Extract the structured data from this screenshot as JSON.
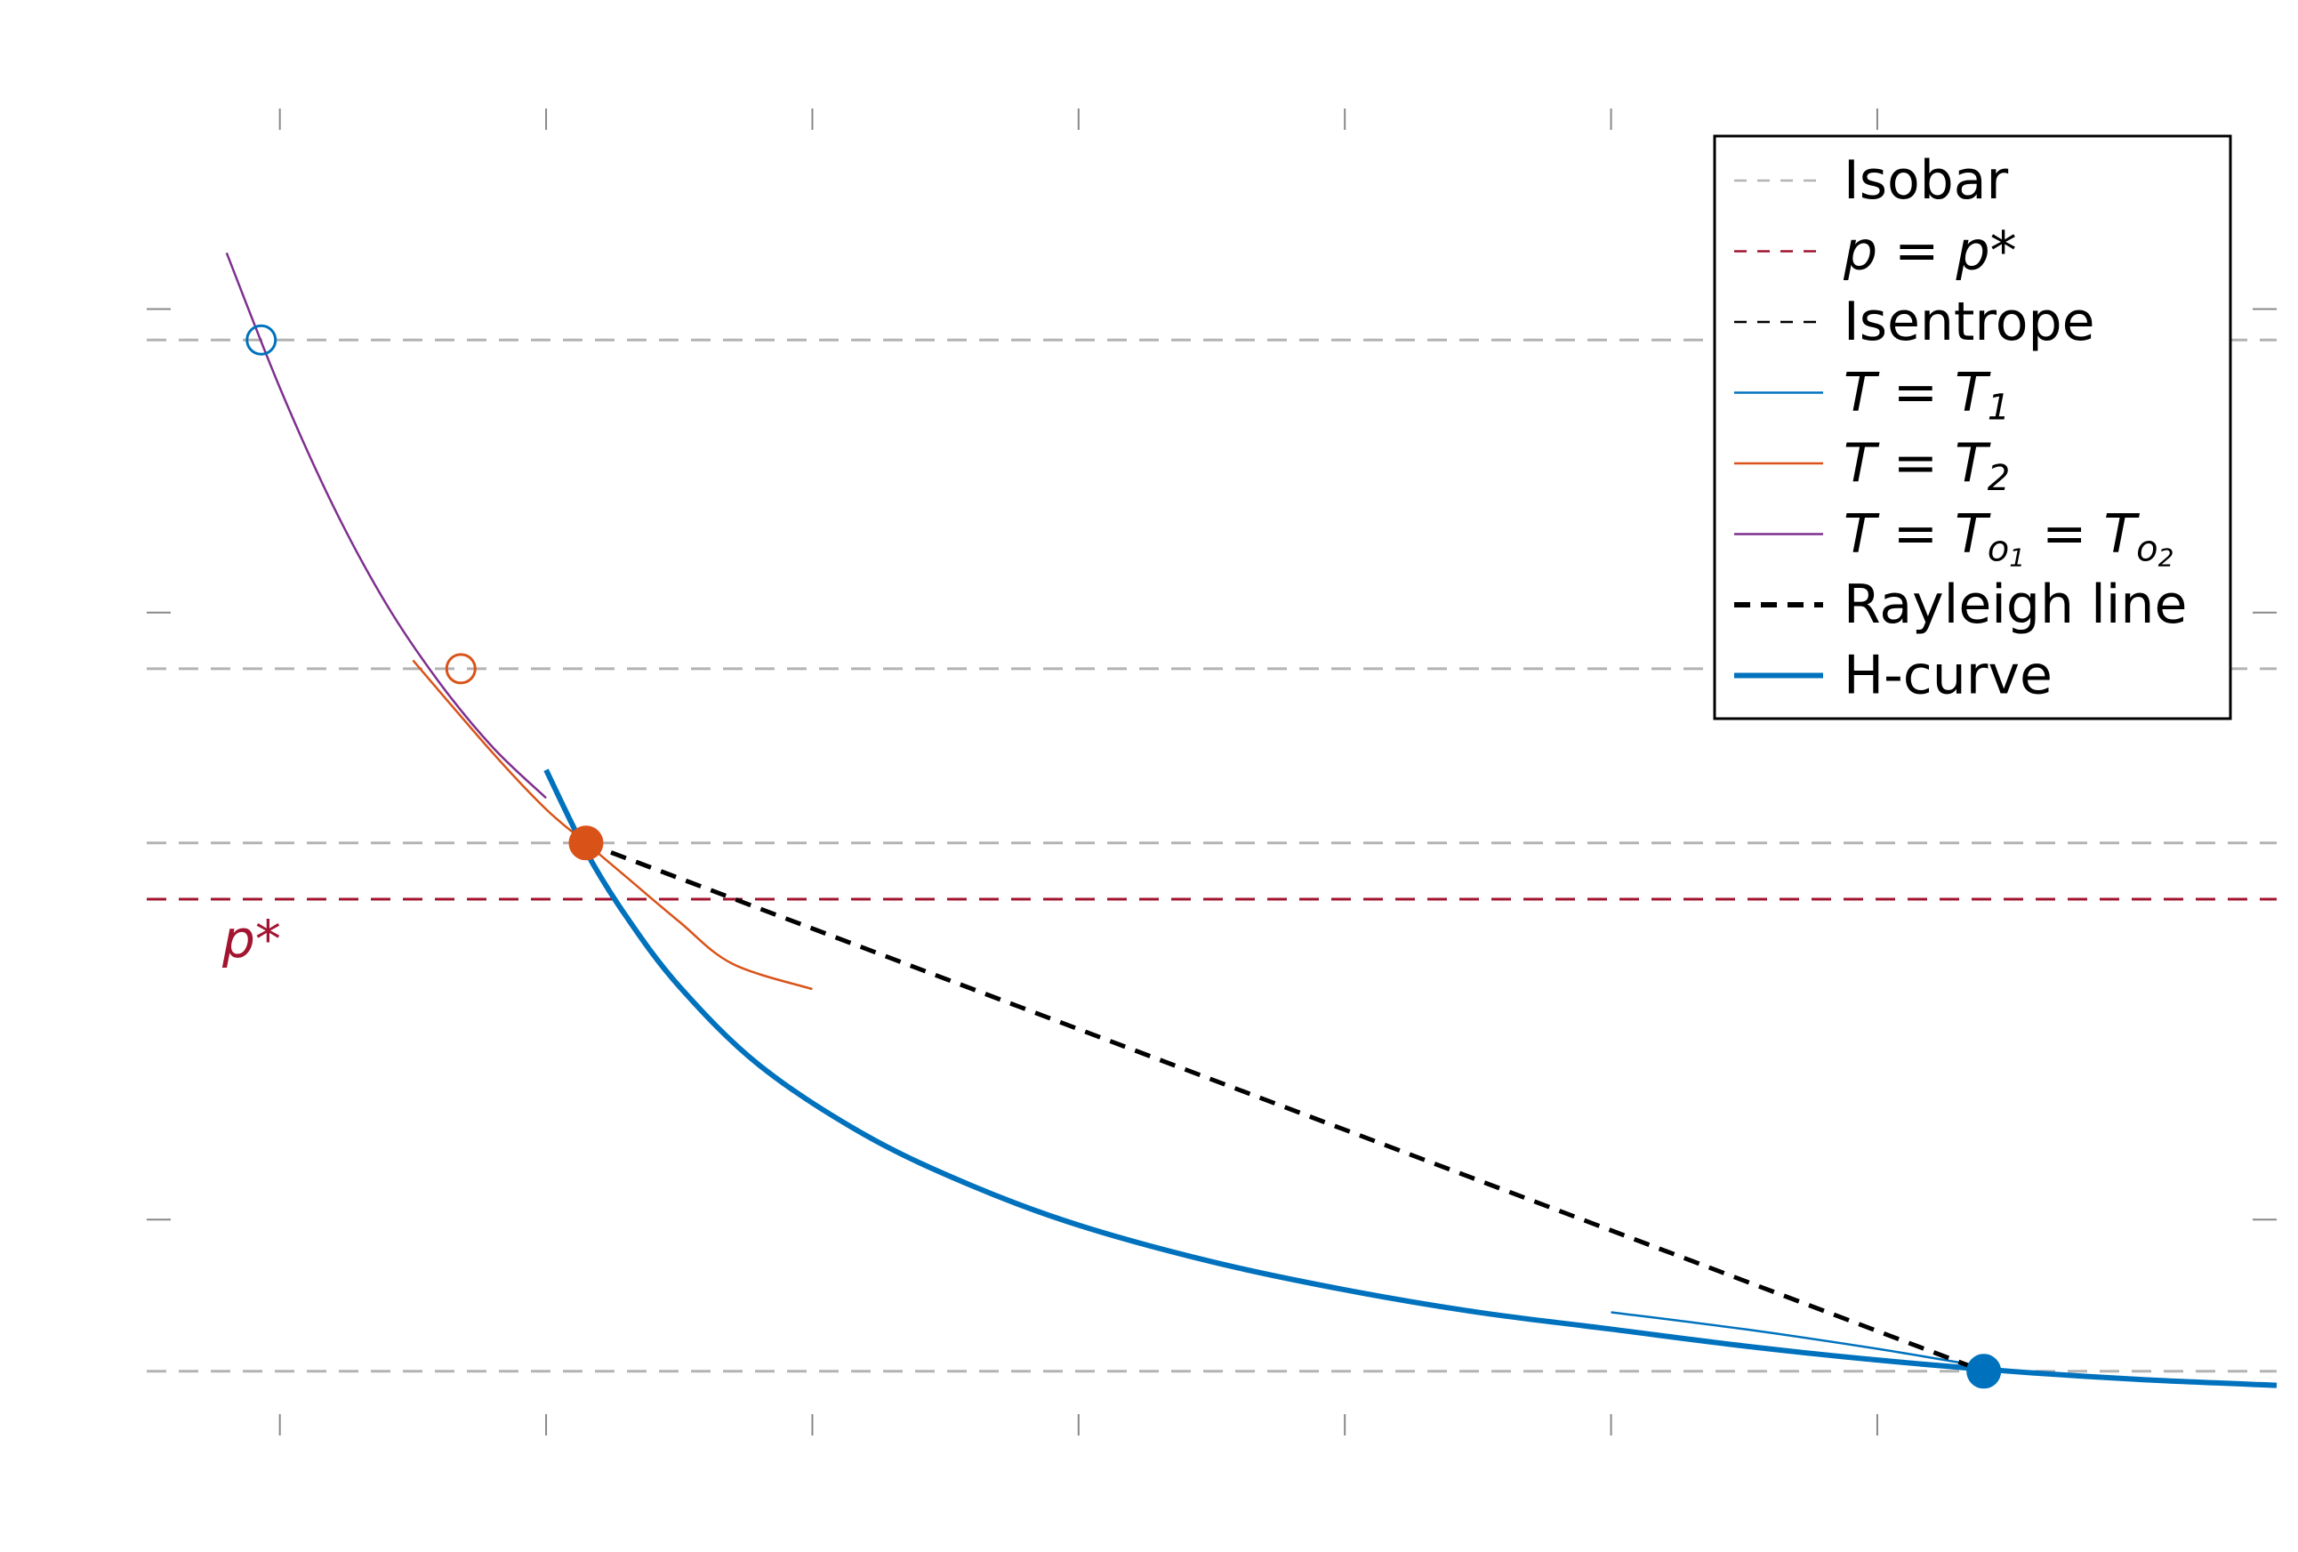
{
  "chart_data": {
    "type": "line",
    "title": "",
    "xlabel": "",
    "ylabel": "",
    "xlim": [
      -1.5,
      6.5
    ],
    "ylim": [
      -0.2,
      4.5
    ],
    "grid": false,
    "legend_position": "top-right",
    "colors": {
      "isobar": "#b3b3b3",
      "pstar": "#a2142f",
      "isentrope": "#000000",
      "t1": "#0072bd",
      "t2": "#d95319",
      "to": "#7e2f8e",
      "rayleigh": "#000000",
      "hcurve": "#0072bd"
    },
    "isobars": [
      3.67,
      2.5,
      1.88,
      0.0
    ],
    "pstar_level": 1.68,
    "pstar_label": "p*",
    "legend": [
      {
        "key": "isobar",
        "style": "dash-thin",
        "text": "Isobar"
      },
      {
        "key": "pstar",
        "style": "dash-thin",
        "text": "p = p*"
      },
      {
        "key": "isentrope",
        "style": "dash-thin",
        "text": "Isentrope"
      },
      {
        "key": "t1",
        "style": "solid-thin",
        "text": "T = T1"
      },
      {
        "key": "t2",
        "style": "solid-thin",
        "text": "T = T2"
      },
      {
        "key": "to",
        "style": "solid-thin",
        "text": "T = To1 = To2"
      },
      {
        "key": "rayleigh",
        "style": "dash-thick",
        "text": "Rayleigh line"
      },
      {
        "key": "hcurve",
        "style": "solid-thick",
        "text": "H-curve"
      }
    ],
    "series": [
      {
        "key": "hcurve",
        "x": [
          0.0,
          0.15,
          0.3,
          0.5,
          0.8,
          1.2,
          1.6,
          2.0,
          2.5,
          3.0,
          3.5,
          4.0,
          4.5,
          5.0,
          5.5,
          6.0,
          6.5
        ],
        "y": [
          2.14,
          1.85,
          1.62,
          1.37,
          1.09,
          0.84,
          0.66,
          0.52,
          0.39,
          0.29,
          0.21,
          0.15,
          0.09,
          0.04,
          0.0,
          -0.03,
          -0.05
        ]
      },
      {
        "key": "t1",
        "x": [
          4.0,
          4.5,
          5.0,
          5.5
        ],
        "y": [
          0.21,
          0.15,
          0.08,
          0.0
        ]
      },
      {
        "key": "t2",
        "x": [
          -0.5,
          -0.2,
          0.0,
          0.15,
          0.3,
          0.5,
          0.7,
          1.0
        ],
        "y": [
          2.53,
          2.2,
          2.0,
          1.88,
          1.76,
          1.6,
          1.45,
          1.36
        ]
      },
      {
        "key": "to",
        "x": [
          -1.2,
          -1.0,
          -0.8,
          -0.6,
          -0.4,
          -0.2,
          0.0
        ],
        "y": [
          3.98,
          3.5,
          3.08,
          2.73,
          2.45,
          2.22,
          2.04
        ]
      },
      {
        "key": "rayleigh",
        "x": [
          0.15,
          5.4
        ],
        "y": [
          1.88,
          0.0
        ]
      }
    ],
    "markers": [
      {
        "key": "t2",
        "x": 0.15,
        "y": 1.88,
        "filled": true
      },
      {
        "key": "t1",
        "x": 5.4,
        "y": 0.0,
        "filled": true
      },
      {
        "key": "t1",
        "x": -1.07,
        "y": 3.67,
        "filled": false
      },
      {
        "key": "t2",
        "x": -0.32,
        "y": 2.5,
        "filled": false
      }
    ],
    "x_ticks": [
      -1,
      0,
      1,
      2,
      3,
      4,
      5
    ],
    "y_ticks": [
      0.54,
      2.7,
      3.78
    ]
  }
}
